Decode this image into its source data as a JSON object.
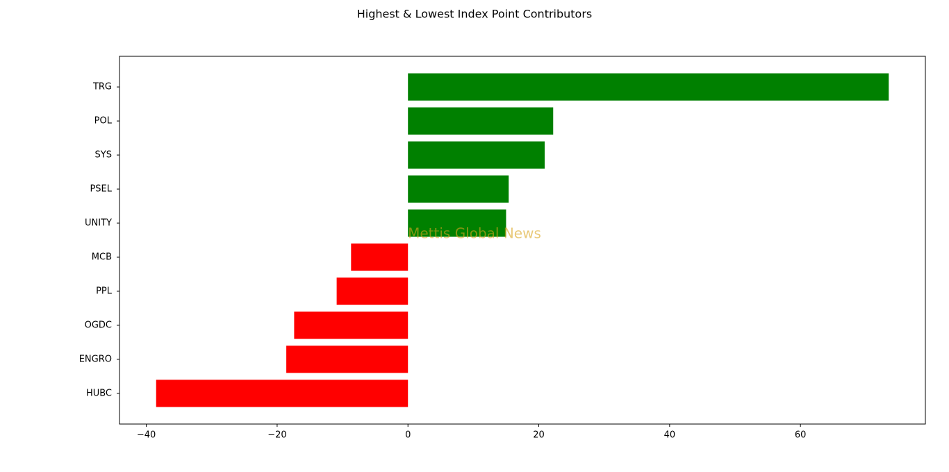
{
  "chart_data": {
    "type": "barh",
    "title": "Highest & Lowest Index Point Contributors",
    "categories": [
      "TRG",
      "POL",
      "SYS",
      "PSEL",
      "UNITY",
      "MCB",
      "PPL",
      "OGDC",
      "ENGRO",
      "HUBC"
    ],
    "values": [
      73.5,
      22.2,
      20.9,
      15.4,
      15.0,
      -8.7,
      -10.9,
      -17.4,
      -18.6,
      -38.5
    ],
    "colors": [
      "#008000",
      "#008000",
      "#008000",
      "#008000",
      "#008000",
      "#ff0000",
      "#ff0000",
      "#ff0000",
      "#ff0000",
      "#ff0000"
    ],
    "xlim": [
      -44.1,
      79.1
    ],
    "xticks": [
      {
        "value": -40,
        "label": "−40"
      },
      {
        "value": -20,
        "label": "−20"
      },
      0,
      20,
      40,
      60
    ],
    "grid": false,
    "watermark": "Mettis Global News"
  }
}
